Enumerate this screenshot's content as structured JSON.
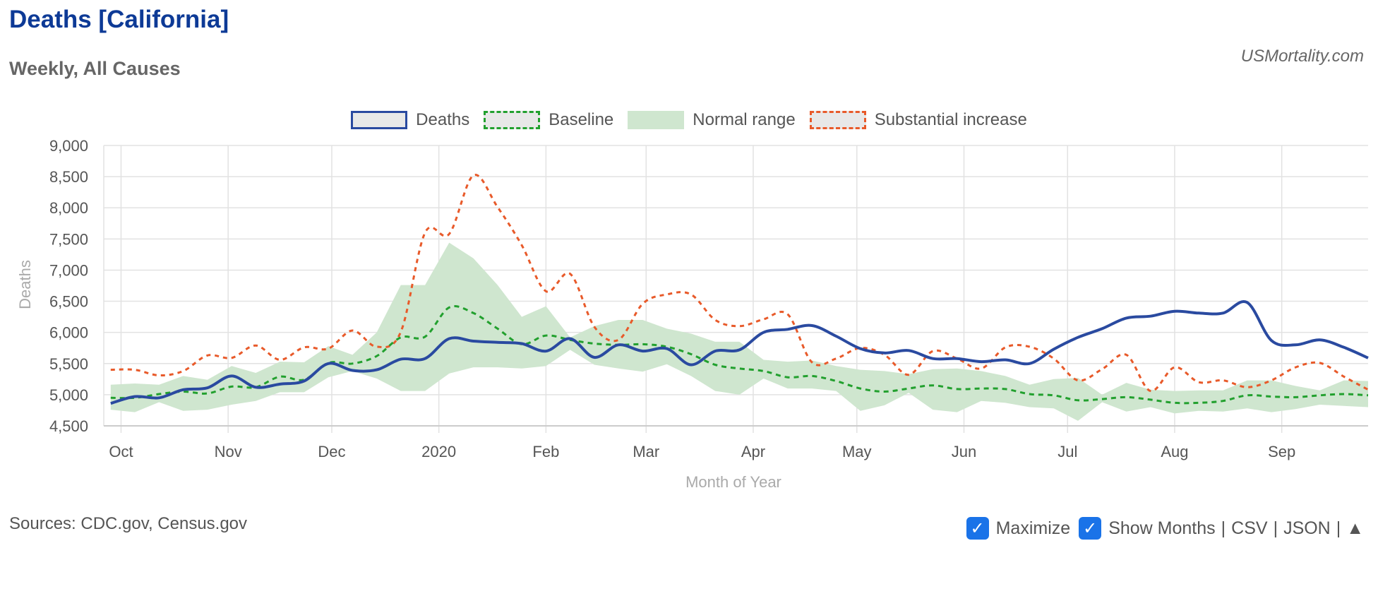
{
  "header": {
    "title": "Deaths [California]",
    "subtitle": "Weekly, All Causes",
    "site": "USMortality.com"
  },
  "footer": {
    "sources": "Sources: CDC.gov, Census.gov",
    "maximize_label": "Maximize",
    "show_months_label": "Show Months",
    "csv_label": "CSV",
    "json_label": "JSON",
    "scroll_top_symbol": "▲",
    "separator": "|"
  },
  "colors": {
    "deaths": "#2a4aa0",
    "baseline": "#22a02e",
    "normal_range": "#cfe6cf",
    "substantial": "#e85a2a",
    "grid": "#e2e2e2",
    "checkbox": "#1a73e8"
  },
  "chart_data": {
    "type": "line",
    "xlabel": "Month of Year",
    "ylabel": "Deaths",
    "ylim": [
      4500,
      9000
    ],
    "yticks": [
      4500,
      5000,
      5500,
      6000,
      6500,
      7000,
      7500,
      8000,
      8500,
      9000
    ],
    "x": [
      "2019-09-28",
      "2019-10-05",
      "2019-10-12",
      "2019-10-19",
      "2019-10-26",
      "2019-11-02",
      "2019-11-09",
      "2019-11-16",
      "2019-11-23",
      "2019-11-30",
      "2019-12-07",
      "2019-12-14",
      "2019-12-21",
      "2019-12-28",
      "2020-01-04",
      "2020-01-11",
      "2020-01-18",
      "2020-01-25",
      "2020-02-01",
      "2020-02-08",
      "2020-02-15",
      "2020-02-22",
      "2020-02-29",
      "2020-03-07",
      "2020-03-14",
      "2020-03-21",
      "2020-03-28",
      "2020-04-04",
      "2020-04-11",
      "2020-04-18",
      "2020-04-25",
      "2020-05-02",
      "2020-05-09",
      "2020-05-16",
      "2020-05-23",
      "2020-05-30",
      "2020-06-06",
      "2020-06-13",
      "2020-06-20",
      "2020-06-27",
      "2020-07-04",
      "2020-07-11",
      "2020-07-18",
      "2020-07-25",
      "2020-08-01",
      "2020-08-08",
      "2020-08-15",
      "2020-08-22",
      "2020-08-29",
      "2020-09-05",
      "2020-09-12",
      "2020-09-19",
      "2020-09-26"
    ],
    "month_ticks": [
      {
        "label": "Oct",
        "date": "2019-10-01"
      },
      {
        "label": "Nov",
        "date": "2019-11-01"
      },
      {
        "label": "Dec",
        "date": "2019-12-01"
      },
      {
        "label": "2020",
        "date": "2020-01-01"
      },
      {
        "label": "Feb",
        "date": "2020-02-01"
      },
      {
        "label": "Mar",
        "date": "2020-03-01"
      },
      {
        "label": "Apr",
        "date": "2020-04-01"
      },
      {
        "label": "May",
        "date": "2020-05-01"
      },
      {
        "label": "Jun",
        "date": "2020-06-01"
      },
      {
        "label": "Jul",
        "date": "2020-07-01"
      },
      {
        "label": "Aug",
        "date": "2020-08-01"
      },
      {
        "label": "Sep",
        "date": "2020-09-01"
      }
    ],
    "series": [
      {
        "name": "Deaths",
        "style": "solid",
        "values": [
          4860,
          4970,
          4950,
          5080,
          5110,
          5300,
          5120,
          5170,
          5220,
          5500,
          5390,
          5400,
          5570,
          5580,
          5900,
          5860,
          5840,
          5820,
          5700,
          5900,
          5600,
          5800,
          5700,
          5740,
          5480,
          5700,
          5720,
          6000,
          6050,
          6110,
          5940,
          5740,
          5670,
          5710,
          5580,
          5580,
          5530,
          5560,
          5500,
          5730,
          5920,
          6060,
          6230,
          6260,
          6340,
          6310,
          6310,
          6480,
          5870,
          5800,
          5880,
          5760,
          5590
        ]
      },
      {
        "name": "Baseline",
        "style": "dashed",
        "values": [
          4950,
          4950,
          5010,
          5050,
          5020,
          5130,
          5120,
          5290,
          5240,
          5510,
          5500,
          5620,
          5920,
          5930,
          6400,
          6310,
          6060,
          5810,
          5950,
          5880,
          5820,
          5800,
          5810,
          5770,
          5650,
          5480,
          5420,
          5380,
          5280,
          5300,
          5220,
          5100,
          5050,
          5100,
          5150,
          5090,
          5100,
          5090,
          5010,
          4990,
          4910,
          4930,
          4960,
          4920,
          4870,
          4870,
          4900,
          4990,
          4970,
          4960,
          4990,
          5010,
          4990
        ]
      },
      {
        "name": "Normal range",
        "type": "band",
        "low": [
          4760,
          4720,
          4880,
          4740,
          4760,
          4840,
          4900,
          5040,
          5040,
          5280,
          5380,
          5260,
          5060,
          5060,
          5340,
          5440,
          5440,
          5420,
          5460,
          5720,
          5480,
          5420,
          5370,
          5490,
          5300,
          5060,
          5000,
          5260,
          5100,
          5100,
          5060,
          4740,
          4830,
          5030,
          4760,
          4720,
          4900,
          4870,
          4800,
          4780,
          4580,
          4880,
          4730,
          4800,
          4700,
          4740,
          4730,
          4780,
          4720,
          4770,
          4840,
          4820,
          4800
        ],
        "high": [
          5160,
          5180,
          5160,
          5300,
          5240,
          5460,
          5350,
          5530,
          5520,
          5780,
          5640,
          6000,
          6760,
          6760,
          7440,
          7190,
          6760,
          6250,
          6420,
          5920,
          6100,
          6200,
          6200,
          6060,
          5980,
          5850,
          5850,
          5560,
          5530,
          5550,
          5460,
          5400,
          5380,
          5330,
          5410,
          5420,
          5380,
          5300,
          5160,
          5250,
          5270,
          5000,
          5190,
          5080,
          5060,
          5070,
          5070,
          5230,
          5230,
          5140,
          5070,
          5230,
          5220
        ]
      },
      {
        "name": "Substantial increase",
        "style": "dashed",
        "values": [
          5400,
          5400,
          5310,
          5380,
          5630,
          5590,
          5790,
          5560,
          5760,
          5740,
          6030,
          5770,
          6010,
          7600,
          7580,
          8520,
          8010,
          7400,
          6660,
          6940,
          6090,
          5880,
          6460,
          6610,
          6610,
          6200,
          6100,
          6210,
          6290,
          5520,
          5580,
          5750,
          5640,
          5320,
          5700,
          5580,
          5420,
          5760,
          5770,
          5580,
          5230,
          5410,
          5640,
          5060,
          5440,
          5200,
          5230,
          5120,
          5230,
          5440,
          5510,
          5290,
          5080
        ]
      }
    ],
    "legend_position": "top-center",
    "grid": true
  }
}
